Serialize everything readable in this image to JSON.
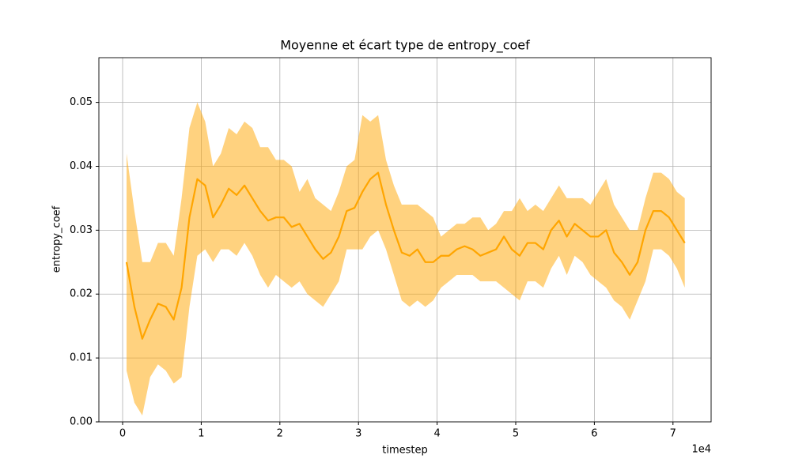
{
  "chart_data": {
    "type": "line_band",
    "title": "Moyenne et écart type de entropy_coef",
    "x_label": "timestep",
    "y_label": "entropy_coef",
    "x_offset_label": "1e4",
    "x": [
      500,
      1500,
      2500,
      3500,
      4500,
      5500,
      6500,
      7500,
      8500,
      9500,
      10500,
      11500,
      12500,
      13500,
      14500,
      15500,
      16500,
      17500,
      18500,
      19500,
      20500,
      21500,
      22500,
      23500,
      24500,
      25500,
      26500,
      27500,
      28500,
      29500,
      30500,
      31500,
      32500,
      33500,
      34500,
      35500,
      36500,
      37500,
      38500,
      39500,
      40500,
      41500,
      42500,
      43500,
      44500,
      45500,
      46500,
      47500,
      48500,
      49500,
      50500,
      51500,
      52500,
      53500,
      54500,
      55500,
      56500,
      57500,
      58500,
      59500,
      60500,
      61500,
      62500,
      63500,
      64500,
      65500,
      66500,
      67500,
      68500,
      69500,
      70500,
      71500
    ],
    "series": [
      {
        "color": "#ffa500",
        "band_color": "#ffa500",
        "values": [
          0.025,
          0.018,
          0.013,
          0.016,
          0.0185,
          0.018,
          0.016,
          0.021,
          0.032,
          0.038,
          0.037,
          0.032,
          0.034,
          0.0365,
          0.0355,
          0.037,
          0.035,
          0.033,
          0.0315,
          0.032,
          0.032,
          0.0305,
          0.031,
          0.029,
          0.027,
          0.0255,
          0.0265,
          0.029,
          0.033,
          0.0335,
          0.036,
          0.038,
          0.039,
          0.034,
          0.03,
          0.0265,
          0.026,
          0.027,
          0.025,
          0.025,
          0.026,
          0.026,
          0.027,
          0.0275,
          0.027,
          0.026,
          0.0265,
          0.027,
          0.029,
          0.027,
          0.026,
          0.028,
          0.028,
          0.027,
          0.03,
          0.0315,
          0.029,
          0.031,
          0.03,
          0.029,
          0.029,
          0.03,
          0.0265,
          0.025,
          0.023,
          0.025,
          0.03,
          0.033,
          0.033,
          0.032,
          0.03,
          0.028
        ],
        "upper": [
          0.042,
          0.033,
          0.025,
          0.025,
          0.028,
          0.028,
          0.026,
          0.035,
          0.046,
          0.05,
          0.047,
          0.04,
          0.042,
          0.046,
          0.045,
          0.047,
          0.046,
          0.043,
          0.043,
          0.041,
          0.041,
          0.04,
          0.036,
          0.038,
          0.035,
          0.034,
          0.033,
          0.036,
          0.04,
          0.041,
          0.048,
          0.047,
          0.048,
          0.041,
          0.037,
          0.034,
          0.034,
          0.034,
          0.033,
          0.032,
          0.029,
          0.03,
          0.031,
          0.031,
          0.032,
          0.032,
          0.03,
          0.031,
          0.033,
          0.033,
          0.035,
          0.033,
          0.034,
          0.033,
          0.035,
          0.037,
          0.035,
          0.035,
          0.035,
          0.034,
          0.036,
          0.038,
          0.034,
          0.032,
          0.03,
          0.03,
          0.035,
          0.039,
          0.039,
          0.038,
          0.036,
          0.035
        ],
        "lower": [
          0.008,
          0.003,
          0.001,
          0.007,
          0.009,
          0.008,
          0.006,
          0.007,
          0.018,
          0.026,
          0.027,
          0.025,
          0.027,
          0.027,
          0.026,
          0.028,
          0.026,
          0.023,
          0.021,
          0.023,
          0.022,
          0.021,
          0.022,
          0.02,
          0.019,
          0.018,
          0.02,
          0.022,
          0.027,
          0.027,
          0.027,
          0.029,
          0.03,
          0.027,
          0.023,
          0.019,
          0.018,
          0.019,
          0.018,
          0.019,
          0.021,
          0.022,
          0.023,
          0.023,
          0.023,
          0.022,
          0.022,
          0.022,
          0.021,
          0.02,
          0.019,
          0.022,
          0.022,
          0.021,
          0.024,
          0.026,
          0.023,
          0.026,
          0.025,
          0.023,
          0.022,
          0.021,
          0.019,
          0.018,
          0.016,
          0.019,
          0.022,
          0.027,
          0.027,
          0.026,
          0.024,
          0.021
        ]
      }
    ],
    "xlim": [
      -3020,
      74850
    ],
    "ylim": [
      0,
      0.057
    ],
    "xticks": [
      {
        "value": 0,
        "label": "0"
      },
      {
        "value": 10000,
        "label": "1"
      },
      {
        "value": 20000,
        "label": "2"
      },
      {
        "value": 30000,
        "label": "3"
      },
      {
        "value": 40000,
        "label": "4"
      },
      {
        "value": 50000,
        "label": "5"
      },
      {
        "value": 60000,
        "label": "6"
      },
      {
        "value": 70000,
        "label": "7"
      }
    ],
    "yticks": [
      {
        "value": 0,
        "label": "0.00"
      },
      {
        "value": 0.01,
        "label": "0.01"
      },
      {
        "value": 0.02,
        "label": "0.02"
      },
      {
        "value": 0.03,
        "label": "0.03"
      },
      {
        "value": 0.04,
        "label": "0.04"
      },
      {
        "value": 0.05,
        "label": "0.05"
      }
    ],
    "grid": true
  }
}
